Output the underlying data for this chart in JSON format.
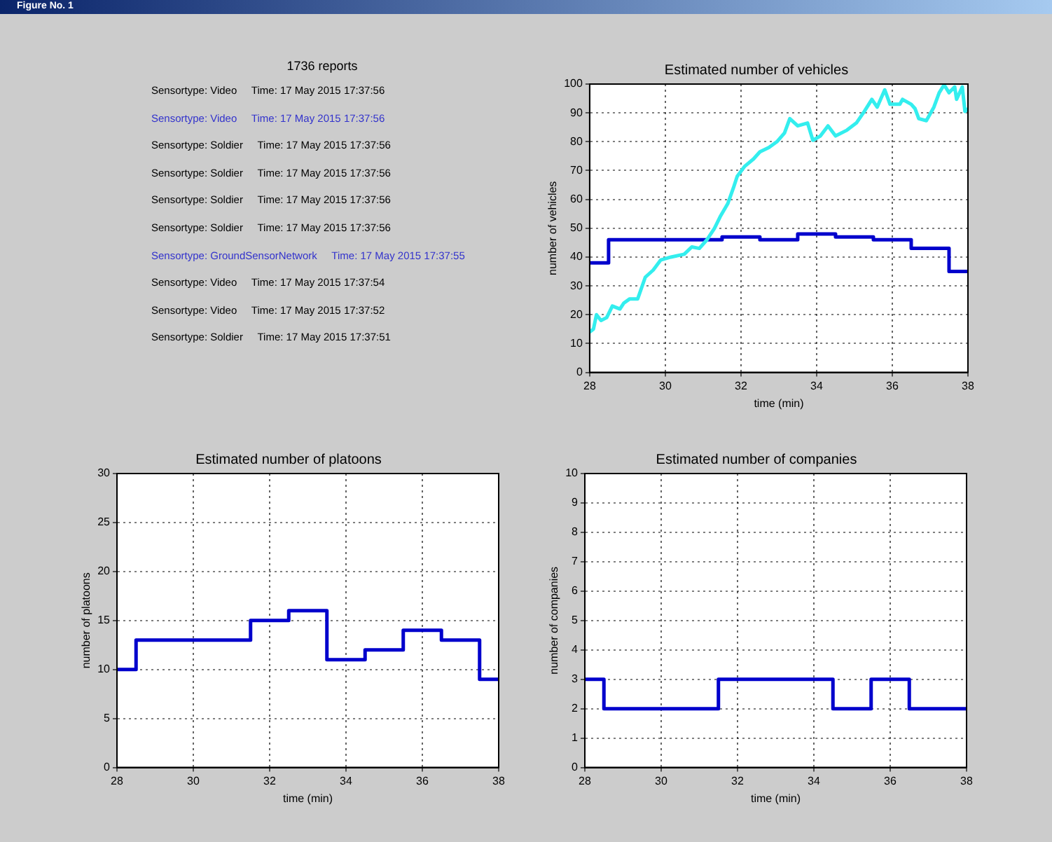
{
  "chart_data": [
    {
      "type": "other",
      "title": "1736 reports",
      "annotations": [
        "Figure No. 1",
        "Sensortype: Video     Time: 17 May 2015 17:37:56",
        "Sensortype: Video     Time: 17 May 2015 17:37:56",
        "Sensortype: Soldier     Time: 17 May 2015 17:37:56",
        "Sensortype: Soldier     Time: 17 May 2015 17:37:56",
        "Sensortype: Soldier     Time: 17 May 2015 17:37:56",
        "Sensortype: Soldier     Time: 17 May 2015 17:37:56",
        "Sensortype: GroundSensorNetwork     Time: 17 May 2015 17:37:55",
        "Sensortype: Video     Time: 17 May 2015 17:37:54",
        "Sensortype: Video     Time: 17 May 2015 17:37:52",
        "Sensortype: Soldier     Time: 17 May 2015 17:37:51"
      ],
      "colors": [
        "#ffffff",
        "#000000",
        "#3333cc",
        "#000000",
        "#000000",
        "#000000",
        "#000000",
        "#3333cc",
        "#000000",
        "#000000",
        "#000000"
      ]
    },
    {
      "type": "line",
      "title": "Estimated number of vehicles",
      "xlabel": "time (min)",
      "ylabel": "number of vehicles",
      "xlim": [
        28,
        38
      ],
      "ylim": [
        0,
        100
      ],
      "xticks": [
        28,
        30,
        32,
        34,
        36,
        38
      ],
      "yticks": [
        0,
        10,
        20,
        30,
        40,
        50,
        60,
        70,
        80,
        90,
        100
      ],
      "grid": true,
      "legend": false,
      "marker": "none",
      "series": [
        {
          "type": "line",
          "color": "#33eeee",
          "x": [
            28,
            28.1,
            28.18,
            28.3,
            28.45,
            28.6,
            28.8,
            28.9,
            29.06,
            29.27,
            29.47,
            29.68,
            29.88,
            30.15,
            30.5,
            30.7,
            30.9,
            31.1,
            31.3,
            31.45,
            31.65,
            31.8,
            31.9,
            32.1,
            32.33,
            32.5,
            32.74,
            32.95,
            33.15,
            33.29,
            33.5,
            33.76,
            33.9,
            34.1,
            34.3,
            34.5,
            34.8,
            35.05,
            35.26,
            35.46,
            35.6,
            35.8,
            35.94,
            36.2,
            36.27,
            36.5,
            36.6,
            36.7,
            36.9,
            37.1,
            37.24,
            37.37,
            37.5,
            37.65,
            37.7,
            37.85,
            37.92,
            38
          ],
          "values": [
            14,
            15,
            20,
            18,
            19,
            23,
            22,
            24,
            25.5,
            25.5,
            33,
            35.5,
            39,
            40,
            41,
            43.5,
            43,
            46,
            50,
            54,
            58.5,
            64,
            68,
            71.5,
            74,
            76.5,
            78,
            80,
            83,
            88,
            85.5,
            86.5,
            80.5,
            82,
            85.5,
            82,
            84,
            86.5,
            90.5,
            94.7,
            92,
            98,
            93,
            93,
            94.7,
            93,
            91.5,
            88,
            87.3,
            92,
            97,
            99.7,
            97,
            99,
            94.7,
            99,
            90.5,
            91.5
          ]
        },
        {
          "type": "step",
          "color": "#0000cc",
          "x": [
            28,
            28.5,
            31.5,
            32.5,
            33.5,
            34.5,
            35.5,
            36.5,
            37.5,
            38
          ],
          "values": [
            38,
            46,
            47,
            46,
            48,
            47,
            46,
            43,
            35,
            35
          ]
        }
      ]
    },
    {
      "type": "step",
      "title": "Estimated number of platoons",
      "xlabel": "time (min)",
      "ylabel": "number of platoons",
      "xlim": [
        28,
        38
      ],
      "ylim": [
        0,
        30
      ],
      "xticks": [
        28,
        30,
        32,
        34,
        36,
        38
      ],
      "yticks": [
        0,
        5,
        10,
        15,
        20,
        25,
        30
      ],
      "grid": true,
      "legend": false,
      "marker": "none",
      "series": [
        {
          "color": "#0000cc",
          "x": [
            28,
            28.5,
            31.5,
            32.5,
            33.5,
            34.5,
            35.5,
            36.5,
            37.5,
            38
          ],
          "values": [
            10,
            13,
            15,
            16,
            11,
            12,
            14,
            13,
            9,
            9
          ]
        }
      ]
    },
    {
      "type": "step",
      "title": "Estimated number of companies",
      "xlabel": "time (min)",
      "ylabel": "number of companies",
      "xlim": [
        28,
        38
      ],
      "ylim": [
        0,
        10
      ],
      "xticks": [
        28,
        30,
        32,
        34,
        36,
        38
      ],
      "yticks": [
        0,
        1,
        2,
        3,
        4,
        5,
        6,
        7,
        8,
        9,
        10
      ],
      "grid": true,
      "legend": false,
      "marker": "none",
      "series": [
        {
          "color": "#0000cc",
          "x": [
            28,
            28.5,
            31.5,
            34.5,
            35.5,
            36.5,
            38
          ],
          "values": [
            3,
            2,
            3,
            2,
            3,
            2,
            2
          ]
        }
      ]
    }
  ]
}
